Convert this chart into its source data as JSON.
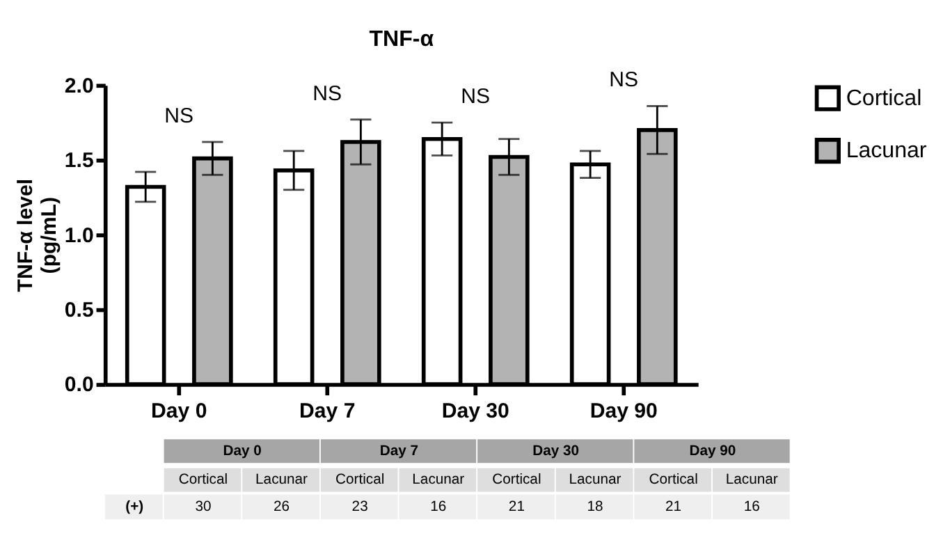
{
  "chart_data": {
    "type": "bar",
    "title": "TNF-α",
    "ylabel": "TNF-α level (pg/mL)",
    "categories": [
      "Day 0",
      "Day 7",
      "Day 30",
      "Day 90"
    ],
    "series": [
      {
        "name": "Cortical",
        "color": "#ffffff",
        "values": [
          1.32,
          1.43,
          1.64,
          1.47
        ],
        "errors": [
          0.1,
          0.13,
          0.11,
          0.09
        ]
      },
      {
        "name": "Lacunar",
        "color": "#b3b3b3",
        "values": [
          1.51,
          1.62,
          1.52,
          1.7
        ],
        "errors": [
          0.11,
          0.15,
          0.12,
          0.16
        ]
      }
    ],
    "ylim": [
      0,
      2
    ],
    "yticks": [
      {
        "value": 0,
        "label": "0.0"
      },
      {
        "value": 0.5,
        "label": "0.5"
      },
      {
        "value": 1,
        "label": "1.0"
      },
      {
        "value": 1.5,
        "label": "1.5"
      },
      {
        "value": 2,
        "label": "2.0"
      }
    ],
    "grid": false,
    "legend": "right",
    "annotations": [
      "NS",
      "NS",
      "NS",
      "NS",
      "Day 0",
      "Day 7",
      "Day 30",
      "Day 90",
      "Cortical",
      "Lacunar",
      "Cortical",
      "Lacunar",
      "Cortical",
      "Lacunar",
      "Cortical",
      "Lacunar",
      "(+)",
      "30",
      "26",
      "23",
      "16",
      "21",
      "18",
      "21",
      "16"
    ]
  }
}
